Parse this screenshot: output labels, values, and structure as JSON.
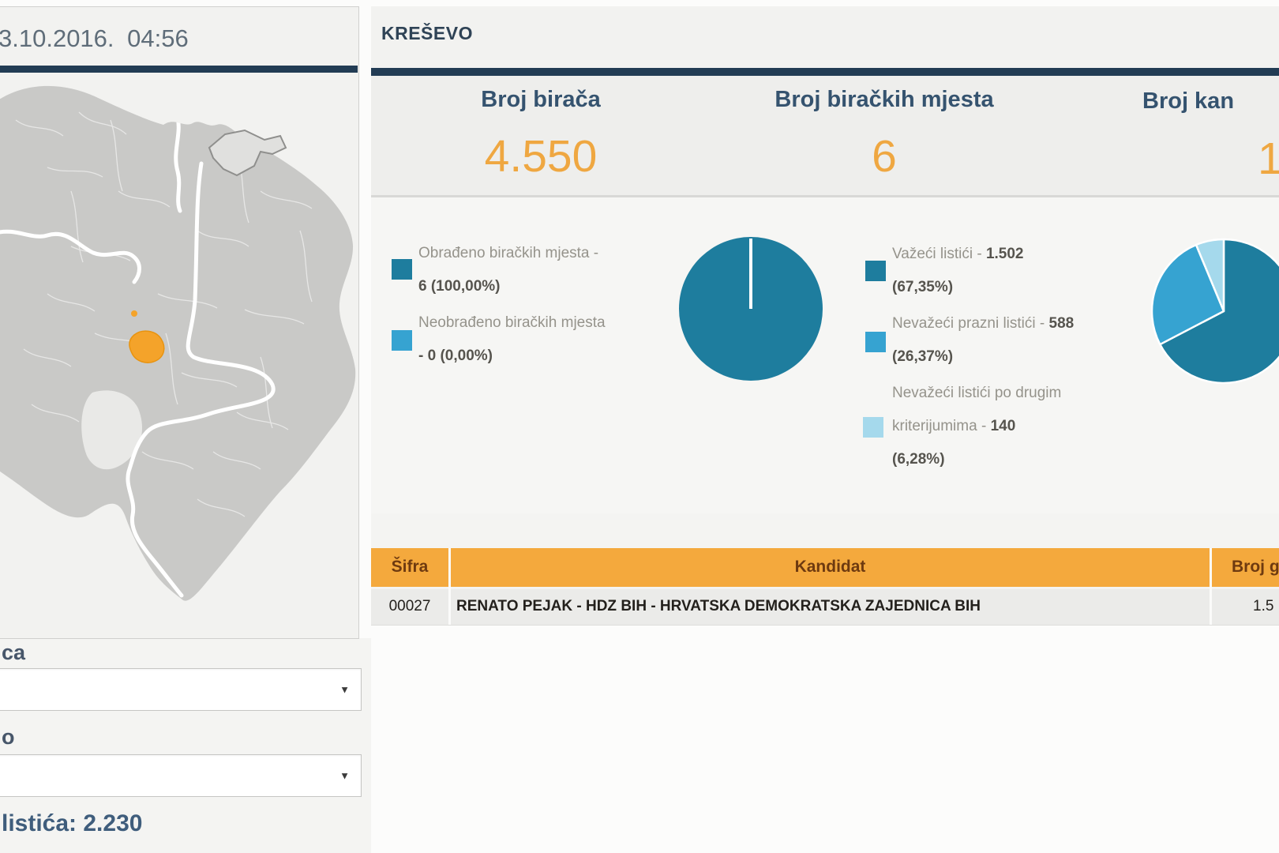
{
  "page": {
    "date": "3.10.2016. 04:56"
  },
  "header": {
    "title": "KREŠEVO"
  },
  "stats": {
    "col1": {
      "label": "Broj birača",
      "value": "4.550"
    },
    "col2": {
      "label": "Broj biračkih mjesta",
      "value": "6"
    },
    "col3": {
      "label": "Broj kan",
      "value": "1"
    }
  },
  "processing_legend": {
    "item1": {
      "line1": "Obrađeno biračkih mjesta -",
      "line2": "6 (100,00%)"
    },
    "item2": {
      "line1": "Neobrađeno biračkih mjesta",
      "line2": "- 0 (0,00%)"
    }
  },
  "ballots_legend": {
    "item1": {
      "pre": "Važeći listići - ",
      "num": "1.502",
      "pct": "(67,35%)"
    },
    "item2": {
      "pre": "Nevažeći prazni listići - ",
      "num": "588",
      "pct": "(26,37%)"
    },
    "item3": {
      "line0": "Nevažeći listići po drugim",
      "pre": "kriterijumima - ",
      "num": "140",
      "pct": "(6,28%)"
    }
  },
  "chart_data": [
    {
      "type": "pie",
      "title": "",
      "legend_position": "left",
      "slices": [
        {
          "label": "Obrađeno biračkih mjesta",
          "value": 6,
          "pct": "100,00%",
          "color": "#1e7d9e"
        },
        {
          "label": "Neobrađeno biračkih mjesta",
          "value": 0,
          "pct": "0,00%",
          "color": "#36a3d1"
        }
      ]
    },
    {
      "type": "pie",
      "title": "",
      "legend_position": "left",
      "slices": [
        {
          "label": "Važeći listići",
          "value": 1502,
          "pct": "67,35%",
          "color": "#1e7d9e"
        },
        {
          "label": "Nevažeći prazni listići",
          "value": 588,
          "pct": "26,37%",
          "color": "#36a3d1"
        },
        {
          "label": "Nevažeći listići po drugim kriterijumima",
          "value": 140,
          "pct": "6,28%",
          "color": "#a5d9ec"
        }
      ]
    }
  ],
  "table": {
    "headers": {
      "sifra": "Šifra",
      "kandidat": "Kandidat",
      "broj": "Broj g"
    },
    "rows": [
      {
        "sifra": "00027",
        "kandidat": "RENATO PEJAK - HDZ BIH - HRVATSKA DEMOKRATSKA ZAJEDNICA BIH",
        "broj": "1.5"
      }
    ]
  },
  "filters": {
    "label1": "ca",
    "select1_value": "",
    "label2": "o",
    "select2_value": "",
    "summary": "listića: 2.230"
  },
  "map": {
    "highlighted_municipality": "KREŠEVO",
    "highlight_color": "#f4a32a",
    "region_fill": "#c9c9c7"
  },
  "colors": {
    "accent_navy": "#223c54",
    "accent_orange": "#efa741",
    "table_header_bg": "#f4a93d",
    "teal": "#1e7d9e",
    "blue": "#36a3d1",
    "light_blue": "#a5d9ec"
  }
}
